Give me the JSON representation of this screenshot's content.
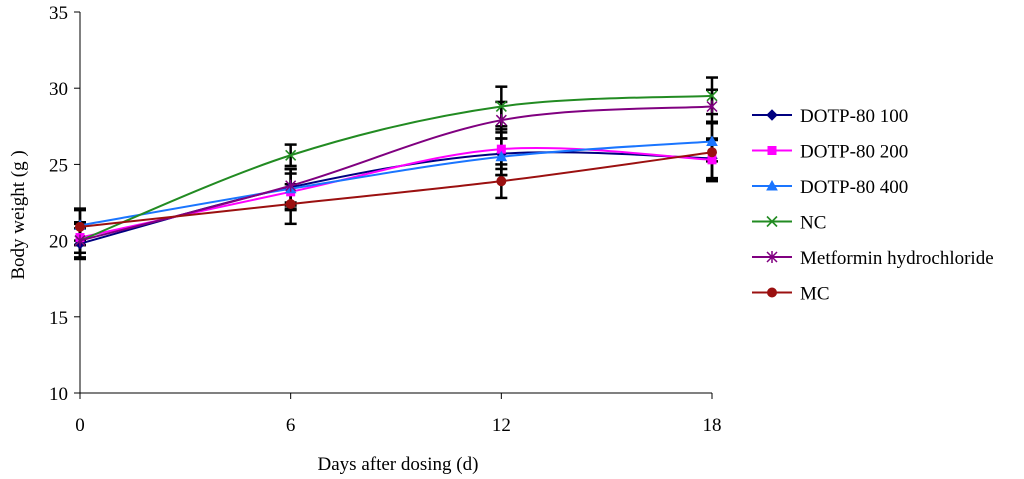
{
  "chart_data": {
    "type": "line",
    "title": "",
    "xlabel": "Days after dosing (d)",
    "ylabel": "Body weight (g )",
    "x": [
      0,
      6,
      12,
      18
    ],
    "xticks": [
      "0",
      "6",
      "12",
      "18"
    ],
    "yticks": [
      "10",
      "15",
      "20",
      "25",
      "30",
      "35"
    ],
    "xlim": [
      0,
      18
    ],
    "ylim": [
      10,
      35
    ],
    "grid": false,
    "legend_position": "right",
    "series": [
      {
        "name": "DOTP-80 100",
        "values": [
          19.8,
          23.5,
          25.7,
          25.4
        ],
        "error": [
          1.0,
          1.2,
          1.4,
          1.3
        ],
        "color": "#000080",
        "marker": "diamond"
      },
      {
        "name": "DOTP-80 200",
        "values": [
          20.2,
          23.2,
          26.0,
          25.3
        ],
        "error": [
          1.0,
          1.2,
          1.3,
          1.3
        ],
        "color": "#ff00ff",
        "marker": "square"
      },
      {
        "name": "DOTP-80 400",
        "values": [
          21.0,
          23.4,
          25.5,
          26.5
        ],
        "error": [
          1.0,
          1.3,
          1.2,
          1.3
        ],
        "color": "#1a75ff",
        "marker": "triangle"
      },
      {
        "name": "NC",
        "values": [
          20.0,
          25.6,
          28.8,
          29.5
        ],
        "error": [
          1.1,
          0.7,
          1.3,
          1.2
        ],
        "color": "#228b22",
        "marker": "x"
      },
      {
        "name": "Metformin hydrochloride",
        "values": [
          20.0,
          23.6,
          27.9,
          28.8
        ],
        "error": [
          1.2,
          1.1,
          1.2,
          1.1
        ],
        "color": "#800080",
        "marker": "star"
      },
      {
        "name": "MC",
        "values": [
          20.9,
          22.4,
          23.9,
          25.8
        ],
        "error": [
          1.2,
          1.3,
          1.1,
          1.9
        ],
        "color": "#9b1010",
        "marker": "circle"
      }
    ]
  }
}
